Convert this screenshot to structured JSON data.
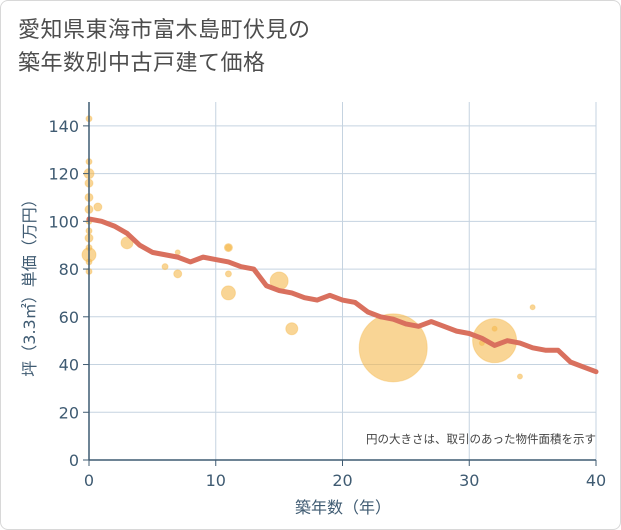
{
  "chart_data": {
    "type": "scatter",
    "title_lines": [
      "愛知県東海市富木島町伏見の",
      "築年数別中古戸建て価格"
    ],
    "xlabel": "築年数（年）",
    "ylabel": "坪（3.3㎡）単価（万円）",
    "xlim": [
      0,
      40
    ],
    "ylim": [
      0,
      150
    ],
    "xticks": [
      0,
      10,
      20,
      30,
      40
    ],
    "yticks": [
      0,
      20,
      40,
      60,
      80,
      100,
      120,
      140
    ],
    "grid": true,
    "note": "円の大きさは、取引のあった物件面積を示す",
    "colors": {
      "bubble": "#f5b94e",
      "line": "#d9705e",
      "grid": "#c5d3e0",
      "axis": "#3f5b72"
    },
    "bubbles": [
      {
        "x": 0,
        "y": 143,
        "size": 3
      },
      {
        "x": 0,
        "y": 125,
        "size": 3
      },
      {
        "x": 0,
        "y": 120,
        "size": 5
      },
      {
        "x": 0,
        "y": 116,
        "size": 4
      },
      {
        "x": 0,
        "y": 110,
        "size": 4
      },
      {
        "x": 0,
        "y": 105,
        "size": 4
      },
      {
        "x": 0,
        "y": 100,
        "size": 3
      },
      {
        "x": 0,
        "y": 96,
        "size": 3
      },
      {
        "x": 0,
        "y": 93,
        "size": 4
      },
      {
        "x": 0,
        "y": 89,
        "size": 3
      },
      {
        "x": 0,
        "y": 86,
        "size": 7
      },
      {
        "x": 0,
        "y": 83,
        "size": 3
      },
      {
        "x": 0,
        "y": 79,
        "size": 3
      },
      {
        "x": 0.7,
        "y": 106,
        "size": 4
      },
      {
        "x": 3,
        "y": 91,
        "size": 6
      },
      {
        "x": 6,
        "y": 81,
        "size": 3
      },
      {
        "x": 7,
        "y": 87,
        "size": 2
      },
      {
        "x": 7,
        "y": 78,
        "size": 4
      },
      {
        "x": 11,
        "y": 89,
        "size": 4
      },
      {
        "x": 11,
        "y": 89,
        "size": 3
      },
      {
        "x": 11,
        "y": 78,
        "size": 3
      },
      {
        "x": 11,
        "y": 70,
        "size": 7
      },
      {
        "x": 15,
        "y": 75,
        "size": 9
      },
      {
        "x": 16,
        "y": 55,
        "size": 6
      },
      {
        "x": 24,
        "y": 47,
        "size": 34
      },
      {
        "x": 32,
        "y": 50,
        "size": 22
      },
      {
        "x": 31,
        "y": 49,
        "size": 1
      },
      {
        "x": 32,
        "y": 55,
        "size": 1
      },
      {
        "x": 34,
        "y": 35,
        "size": 1
      },
      {
        "x": 35,
        "y": 64,
        "size": 1
      }
    ],
    "trend": {
      "x": [
        0,
        1,
        2,
        3,
        4,
        5,
        6,
        7,
        8,
        9,
        10,
        11,
        12,
        13,
        14,
        15,
        16,
        17,
        18,
        19,
        20,
        21,
        22,
        23,
        24,
        25,
        26,
        27,
        28,
        29,
        30,
        31,
        32,
        33,
        34,
        35,
        36,
        37,
        38,
        39,
        40
      ],
      "y": [
        101,
        100,
        98,
        95,
        90,
        87,
        86,
        85,
        83,
        85,
        84,
        83,
        81,
        80,
        73,
        71,
        70,
        68,
        67,
        69,
        67,
        66,
        62,
        60,
        59,
        57,
        56,
        58,
        56,
        54,
        53,
        51,
        48,
        50,
        49,
        47,
        46,
        46,
        41,
        39,
        37
      ]
    }
  }
}
